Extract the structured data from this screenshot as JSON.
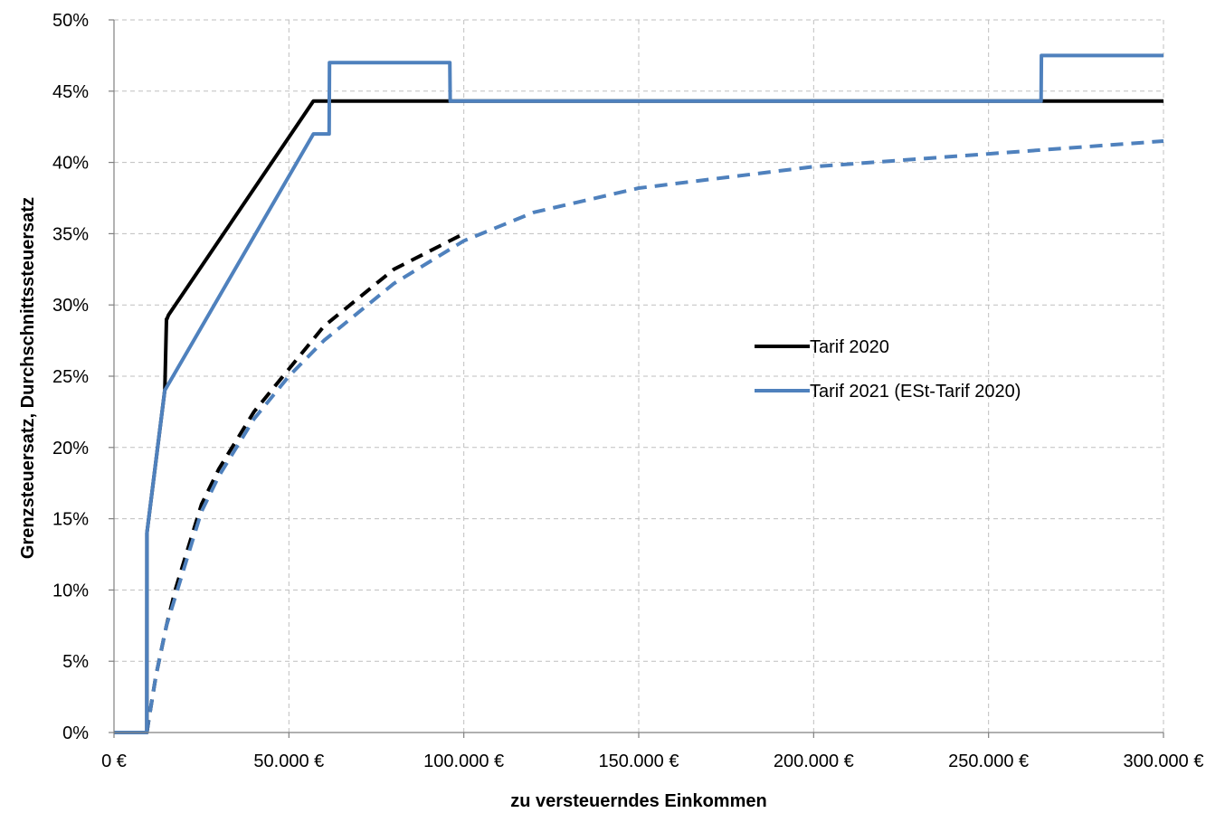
{
  "chart_data": {
    "type": "line",
    "xlabel": "zu versteuerndes Einkommen",
    "ylabel": "Grenzsteuersatz, Durchschnittssteuersatz",
    "xlim": [
      0,
      300000
    ],
    "ylim": [
      0,
      50
    ],
    "x_ticks": [
      "0 €",
      "50.000 €",
      "100.000 €",
      "150.000 €",
      "200.000 €",
      "250.000 €",
      "300.000 €"
    ],
    "y_ticks": [
      "0%",
      "5%",
      "10%",
      "15%",
      "20%",
      "25%",
      "30%",
      "35%",
      "40%",
      "45%",
      "50%"
    ],
    "grid": true,
    "legend_position": "right-middle",
    "series": [
      {
        "name": "Tarif 2020",
        "color": "#000000",
        "style": "solid",
        "x": [
          0,
          9400,
          9409,
          14500,
          14533,
          15000,
          15100,
          15600,
          57000,
          96000,
          265000,
          300000
        ],
        "y": [
          0,
          0,
          14,
          24,
          24.1,
          29,
          29,
          29.3,
          44.3,
          44.3,
          44.3,
          44.3
        ]
      },
      {
        "name": "Tarif 2021 (ESt-Tarif 2020)",
        "color": "#4f81bd",
        "style": "solid",
        "x": [
          0,
          9400,
          9409,
          14500,
          57000,
          61500,
          61600,
          96000,
          96100,
          265000,
          265100,
          300000
        ],
        "y": [
          0,
          0,
          14,
          24,
          42,
          42,
          47,
          47,
          44.3,
          44.3,
          47.5,
          47.5
        ]
      },
      {
        "name": "",
        "color": "#000000",
        "style": "dashed",
        "x": [
          9400,
          10000,
          12000,
          15000,
          17500,
          20000,
          25000,
          30000,
          40000,
          50000,
          60000,
          80000,
          100000
        ],
        "y": [
          0,
          1,
          4,
          7.5,
          10,
          12,
          16,
          18.5,
          22.5,
          25.5,
          28.5,
          32.5,
          35
        ]
      },
      {
        "name": "",
        "color": "#4f81bd",
        "style": "dashed",
        "x": [
          9400,
          10000,
          12000,
          15000,
          17500,
          20000,
          25000,
          30000,
          40000,
          50000,
          60000,
          80000,
          100000,
          120000,
          150000,
          200000,
          250000,
          300000
        ],
        "y": [
          0,
          1,
          4,
          7.5,
          9.5,
          11.5,
          15.5,
          18,
          22,
          25,
          27.5,
          31.5,
          34.5,
          36.5,
          38.2,
          39.7,
          40.6,
          41.5
        ]
      }
    ]
  }
}
